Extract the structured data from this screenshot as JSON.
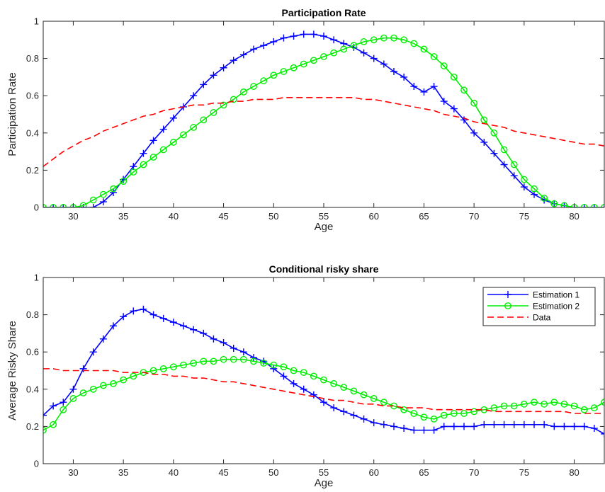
{
  "chart_data": [
    {
      "type": "line",
      "title": "Participation Rate",
      "xlabel": "Age",
      "ylabel": "Participation Rate",
      "xlim": [
        27,
        83
      ],
      "ylim": [
        0,
        1
      ],
      "xticks": [
        30,
        35,
        40,
        45,
        50,
        55,
        60,
        65,
        70,
        75,
        80
      ],
      "yticks": [
        0,
        0.2,
        0.4,
        0.6,
        0.8,
        1
      ],
      "ytick_labels": [
        "0",
        "0.2",
        "0.4",
        "0.6",
        "0.8",
        "1"
      ],
      "x": [
        27,
        28,
        29,
        30,
        31,
        32,
        33,
        34,
        35,
        36,
        37,
        38,
        39,
        40,
        41,
        42,
        43,
        44,
        45,
        46,
        47,
        48,
        49,
        50,
        51,
        52,
        53,
        54,
        55,
        56,
        57,
        58,
        59,
        60,
        61,
        62,
        63,
        64,
        65,
        66,
        67,
        68,
        69,
        70,
        71,
        72,
        73,
        74,
        75,
        76,
        77,
        78,
        79,
        80,
        81,
        82,
        83
      ],
      "series": [
        {
          "name": "Estimation 1",
          "color": "#0000ff",
          "marker": "plus",
          "style": "solid",
          "values": [
            0,
            0,
            0,
            0,
            0,
            0,
            0.03,
            0.08,
            0.15,
            0.22,
            0.29,
            0.36,
            0.42,
            0.48,
            0.54,
            0.6,
            0.66,
            0.71,
            0.75,
            0.79,
            0.82,
            0.85,
            0.87,
            0.89,
            0.91,
            0.92,
            0.93,
            0.93,
            0.92,
            0.9,
            0.88,
            0.86,
            0.83,
            0.8,
            0.77,
            0.73,
            0.7,
            0.65,
            0.62,
            0.65,
            0.57,
            0.53,
            0.47,
            0.4,
            0.35,
            0.29,
            0.23,
            0.17,
            0.11,
            0.07,
            0.04,
            0.02,
            0.01,
            0,
            0,
            0,
            0
          ]
        },
        {
          "name": "Estimation 2",
          "color": "#00ee00",
          "marker": "circle",
          "style": "solid",
          "values": [
            0,
            0,
            0,
            0,
            0.01,
            0.04,
            0.07,
            0.1,
            0.14,
            0.19,
            0.23,
            0.27,
            0.31,
            0.35,
            0.39,
            0.43,
            0.47,
            0.51,
            0.55,
            0.58,
            0.62,
            0.65,
            0.68,
            0.71,
            0.73,
            0.75,
            0.77,
            0.79,
            0.81,
            0.83,
            0.85,
            0.87,
            0.89,
            0.9,
            0.91,
            0.91,
            0.9,
            0.88,
            0.85,
            0.81,
            0.76,
            0.7,
            0.63,
            0.56,
            0.47,
            0.4,
            0.31,
            0.23,
            0.15,
            0.1,
            0.05,
            0.02,
            0.01,
            0,
            0,
            0,
            0
          ]
        },
        {
          "name": "Data",
          "color": "#ff0000",
          "marker": "none",
          "style": "dashed",
          "values": [
            0.22,
            0.26,
            0.3,
            0.33,
            0.36,
            0.38,
            0.41,
            0.43,
            0.45,
            0.47,
            0.49,
            0.5,
            0.52,
            0.53,
            0.54,
            0.55,
            0.55,
            0.56,
            0.56,
            0.57,
            0.57,
            0.58,
            0.58,
            0.58,
            0.59,
            0.59,
            0.59,
            0.59,
            0.59,
            0.59,
            0.59,
            0.59,
            0.58,
            0.58,
            0.57,
            0.56,
            0.55,
            0.54,
            0.53,
            0.52,
            0.5,
            0.49,
            0.48,
            0.46,
            0.45,
            0.44,
            0.43,
            0.41,
            0.4,
            0.39,
            0.38,
            0.37,
            0.36,
            0.35,
            0.34,
            0.34,
            0.33
          ]
        }
      ]
    },
    {
      "type": "line",
      "title": "Conditional risky share",
      "xlabel": "Age",
      "ylabel": "Average Risky Share",
      "xlim": [
        27,
        83
      ],
      "ylim": [
        0,
        1
      ],
      "xticks": [
        30,
        35,
        40,
        45,
        50,
        55,
        60,
        65,
        70,
        75,
        80
      ],
      "yticks": [
        0,
        0.2,
        0.4,
        0.6,
        0.8,
        1
      ],
      "ytick_labels": [
        "0",
        "0.2",
        "0.4",
        "0.6",
        "0.8",
        "1"
      ],
      "legend": "top-right",
      "x": [
        27,
        28,
        29,
        30,
        31,
        32,
        33,
        34,
        35,
        36,
        37,
        38,
        39,
        40,
        41,
        42,
        43,
        44,
        45,
        46,
        47,
        48,
        49,
        50,
        51,
        52,
        53,
        54,
        55,
        56,
        57,
        58,
        59,
        60,
        61,
        62,
        63,
        64,
        65,
        66,
        67,
        68,
        69,
        70,
        71,
        72,
        73,
        74,
        75,
        76,
        77,
        78,
        79,
        80,
        81,
        82,
        83
      ],
      "series": [
        {
          "name": "Estimation 1",
          "color": "#0000ff",
          "marker": "plus",
          "style": "solid",
          "values": [
            0.26,
            0.31,
            0.33,
            0.4,
            0.51,
            0.6,
            0.67,
            0.74,
            0.79,
            0.82,
            0.83,
            0.8,
            0.78,
            0.76,
            0.74,
            0.72,
            0.7,
            0.67,
            0.65,
            0.62,
            0.6,
            0.57,
            0.55,
            0.51,
            0.47,
            0.43,
            0.4,
            0.37,
            0.33,
            0.3,
            0.28,
            0.26,
            0.24,
            0.22,
            0.21,
            0.2,
            0.19,
            0.18,
            0.18,
            0.18,
            0.2,
            0.2,
            0.2,
            0.2,
            0.21,
            0.21,
            0.21,
            0.21,
            0.21,
            0.21,
            0.21,
            0.2,
            0.2,
            0.2,
            0.2,
            0.19,
            0.16
          ]
        },
        {
          "name": "Estimation 2",
          "color": "#00ee00",
          "marker": "circle",
          "style": "solid",
          "values": [
            0.18,
            0.21,
            0.29,
            0.35,
            0.38,
            0.4,
            0.42,
            0.43,
            0.45,
            0.47,
            0.49,
            0.5,
            0.51,
            0.52,
            0.53,
            0.54,
            0.55,
            0.55,
            0.56,
            0.56,
            0.56,
            0.55,
            0.54,
            0.53,
            0.52,
            0.5,
            0.49,
            0.47,
            0.45,
            0.43,
            0.41,
            0.39,
            0.37,
            0.35,
            0.33,
            0.31,
            0.29,
            0.27,
            0.25,
            0.24,
            0.26,
            0.27,
            0.27,
            0.28,
            0.29,
            0.3,
            0.31,
            0.31,
            0.32,
            0.33,
            0.32,
            0.33,
            0.32,
            0.31,
            0.29,
            0.3,
            0.33
          ]
        },
        {
          "name": "Data",
          "color": "#ff0000",
          "marker": "none",
          "style": "dashed",
          "values": [
            0.51,
            0.51,
            0.5,
            0.5,
            0.5,
            0.5,
            0.5,
            0.5,
            0.49,
            0.49,
            0.49,
            0.48,
            0.48,
            0.47,
            0.47,
            0.46,
            0.46,
            0.45,
            0.44,
            0.44,
            0.43,
            0.42,
            0.41,
            0.4,
            0.39,
            0.38,
            0.37,
            0.36,
            0.35,
            0.34,
            0.34,
            0.33,
            0.32,
            0.32,
            0.31,
            0.31,
            0.3,
            0.3,
            0.3,
            0.29,
            0.29,
            0.29,
            0.29,
            0.29,
            0.29,
            0.28,
            0.28,
            0.28,
            0.28,
            0.28,
            0.28,
            0.28,
            0.28,
            0.27,
            0.27,
            0.27,
            0.27
          ]
        }
      ]
    }
  ]
}
